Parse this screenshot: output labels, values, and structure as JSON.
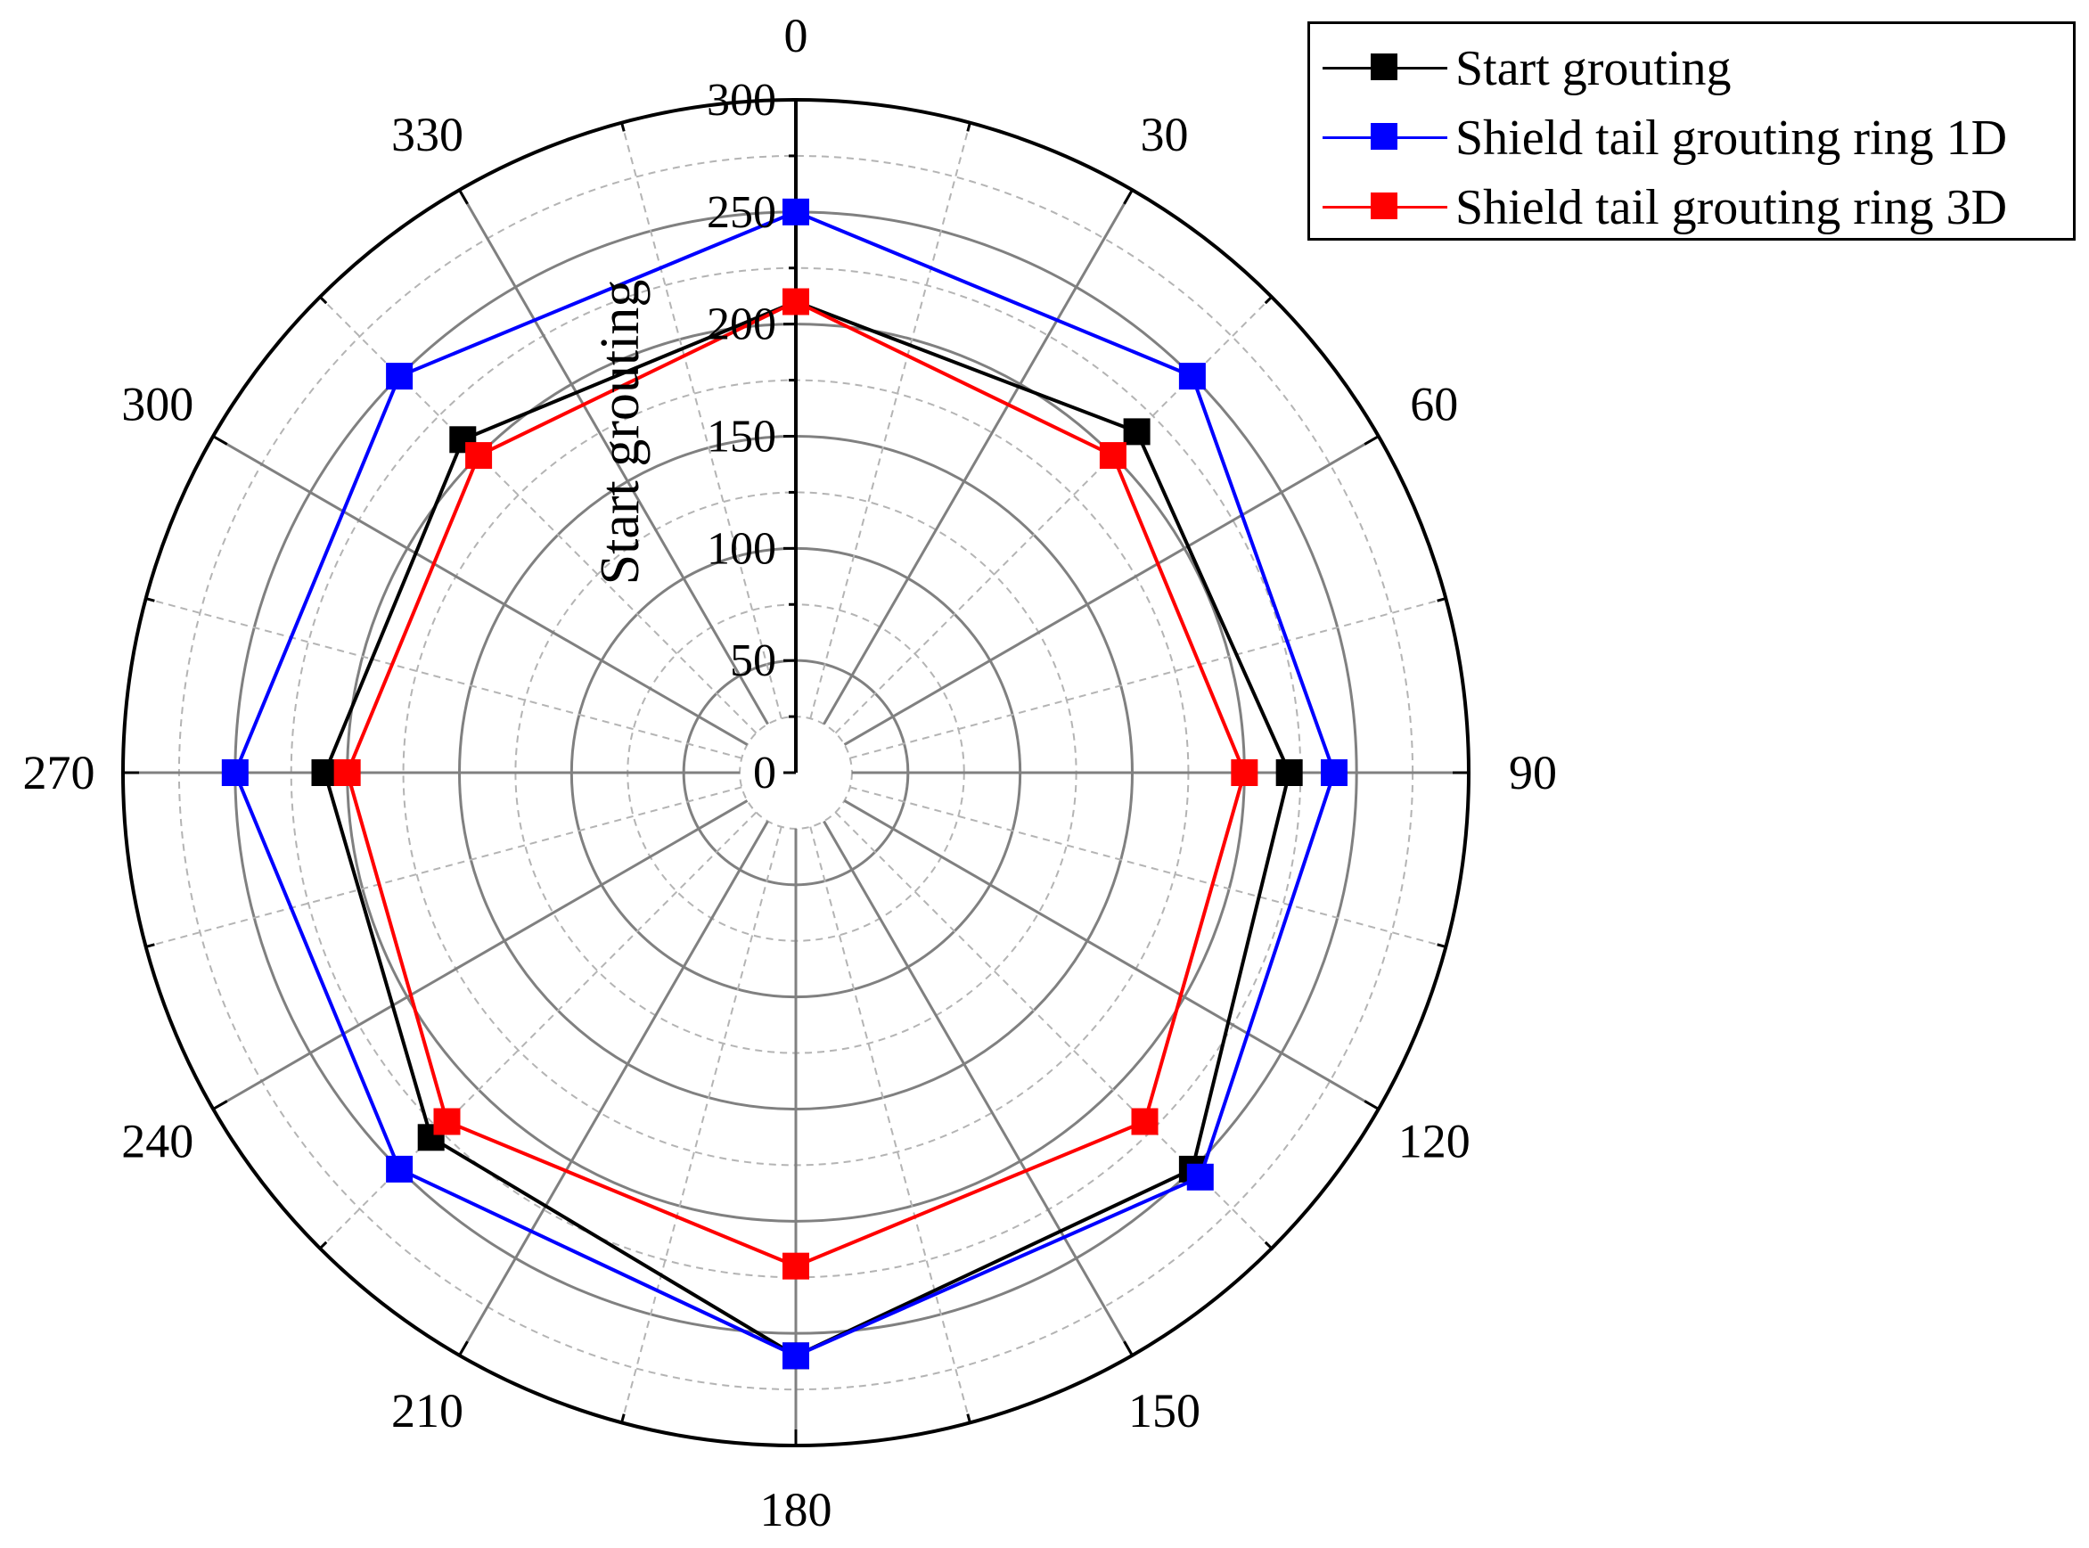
{
  "chart_data": {
    "type": "polar-line",
    "angles": [
      0,
      30,
      60,
      90,
      120,
      150,
      180,
      210,
      240,
      270,
      300,
      330
    ],
    "angle_labels": [
      "0",
      "30",
      "60",
      "90",
      "120",
      "150",
      "180",
      "210",
      "240",
      "270",
      "300",
      "330"
    ],
    "marker_angles": [
      0,
      45,
      90,
      135,
      180,
      225,
      270,
      315
    ],
    "radial_ticks": [
      "0",
      "50",
      "100",
      "150",
      "200",
      "250",
      "300"
    ],
    "rlim": [
      0,
      300
    ],
    "radial_axis_label": "Start grouting",
    "grid": true,
    "legend_position": "top-right",
    "series": [
      {
        "name": "Start grouting",
        "color": "#000000",
        "values": [
          210,
          210,
          220,
          220,
          240,
          260,
          260,
          240,
          220,
          210,
          210,
          210
        ]
      },
      {
        "name": "Shield tail grouting ring 1D",
        "color": "#0000ff",
        "values": [
          250,
          250,
          250,
          240,
          250,
          260,
          260,
          250,
          250,
          250,
          250,
          250
        ]
      },
      {
        "name": "Shield tail grouting ring 3D",
        "color": "#ff0000",
        "values": [
          210,
          200,
          200,
          200,
          220,
          220,
          220,
          220,
          220,
          200,
          200,
          200
        ]
      }
    ]
  }
}
